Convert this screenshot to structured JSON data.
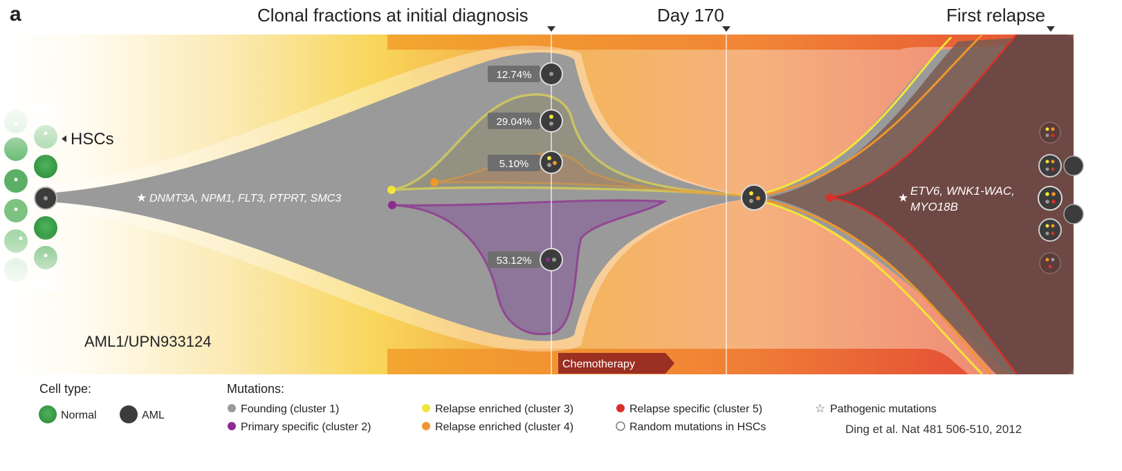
{
  "panel_label": "a",
  "timepoints": {
    "diagnosis": "Clonal fractions at initial diagnosis",
    "day170": "Day 170",
    "relapse": "First relapse"
  },
  "hsc_label": "HSCs",
  "founding_mutations": "DNMT3A, NPM1, FLT3, PTPRT, SMC3",
  "relapse_mutations_line1": "ETV6, WNK1-WAC,",
  "relapse_mutations_line2": "MYO18B",
  "patient_id": "AML1/UPN933124",
  "chemo_label": "Chemotherapy",
  "clonal_fractions": [
    {
      "clone": "cluster1",
      "value": "12.74%"
    },
    {
      "clone": "cluster1+3",
      "value": "29.04%"
    },
    {
      "clone": "cluster1+3+4",
      "value": "5.10%"
    },
    {
      "clone": "cluster1+2",
      "value": "53.12%"
    }
  ],
  "legend": {
    "cell_type_title": "Cell type:",
    "normal": "Normal",
    "aml": "AML",
    "mutations_title": "Mutations:",
    "founding": "Founding (cluster 1)",
    "primary": "Primary specific (cluster 2)",
    "relapse3": "Relapse enriched (cluster 3)",
    "relapse4": "Relapse enriched (cluster 4)",
    "relapse5": "Relapse specific (cluster 5)",
    "random": "Random mutations in HSCs",
    "pathogenic": "Pathogenic mutations",
    "star_symbol": "☆"
  },
  "citation": "Ding et al. Nat 481 506-510, 2012",
  "colors": {
    "founding": "#9a9a9a",
    "primary": "#8e2a90",
    "relapse3": "#f2e53a",
    "relapse4": "#f0962c",
    "relapse5": "#d8302b",
    "normal": "#3aa04a",
    "aml": "#3c3c3c",
    "relapse_fill": "#6e4844"
  }
}
